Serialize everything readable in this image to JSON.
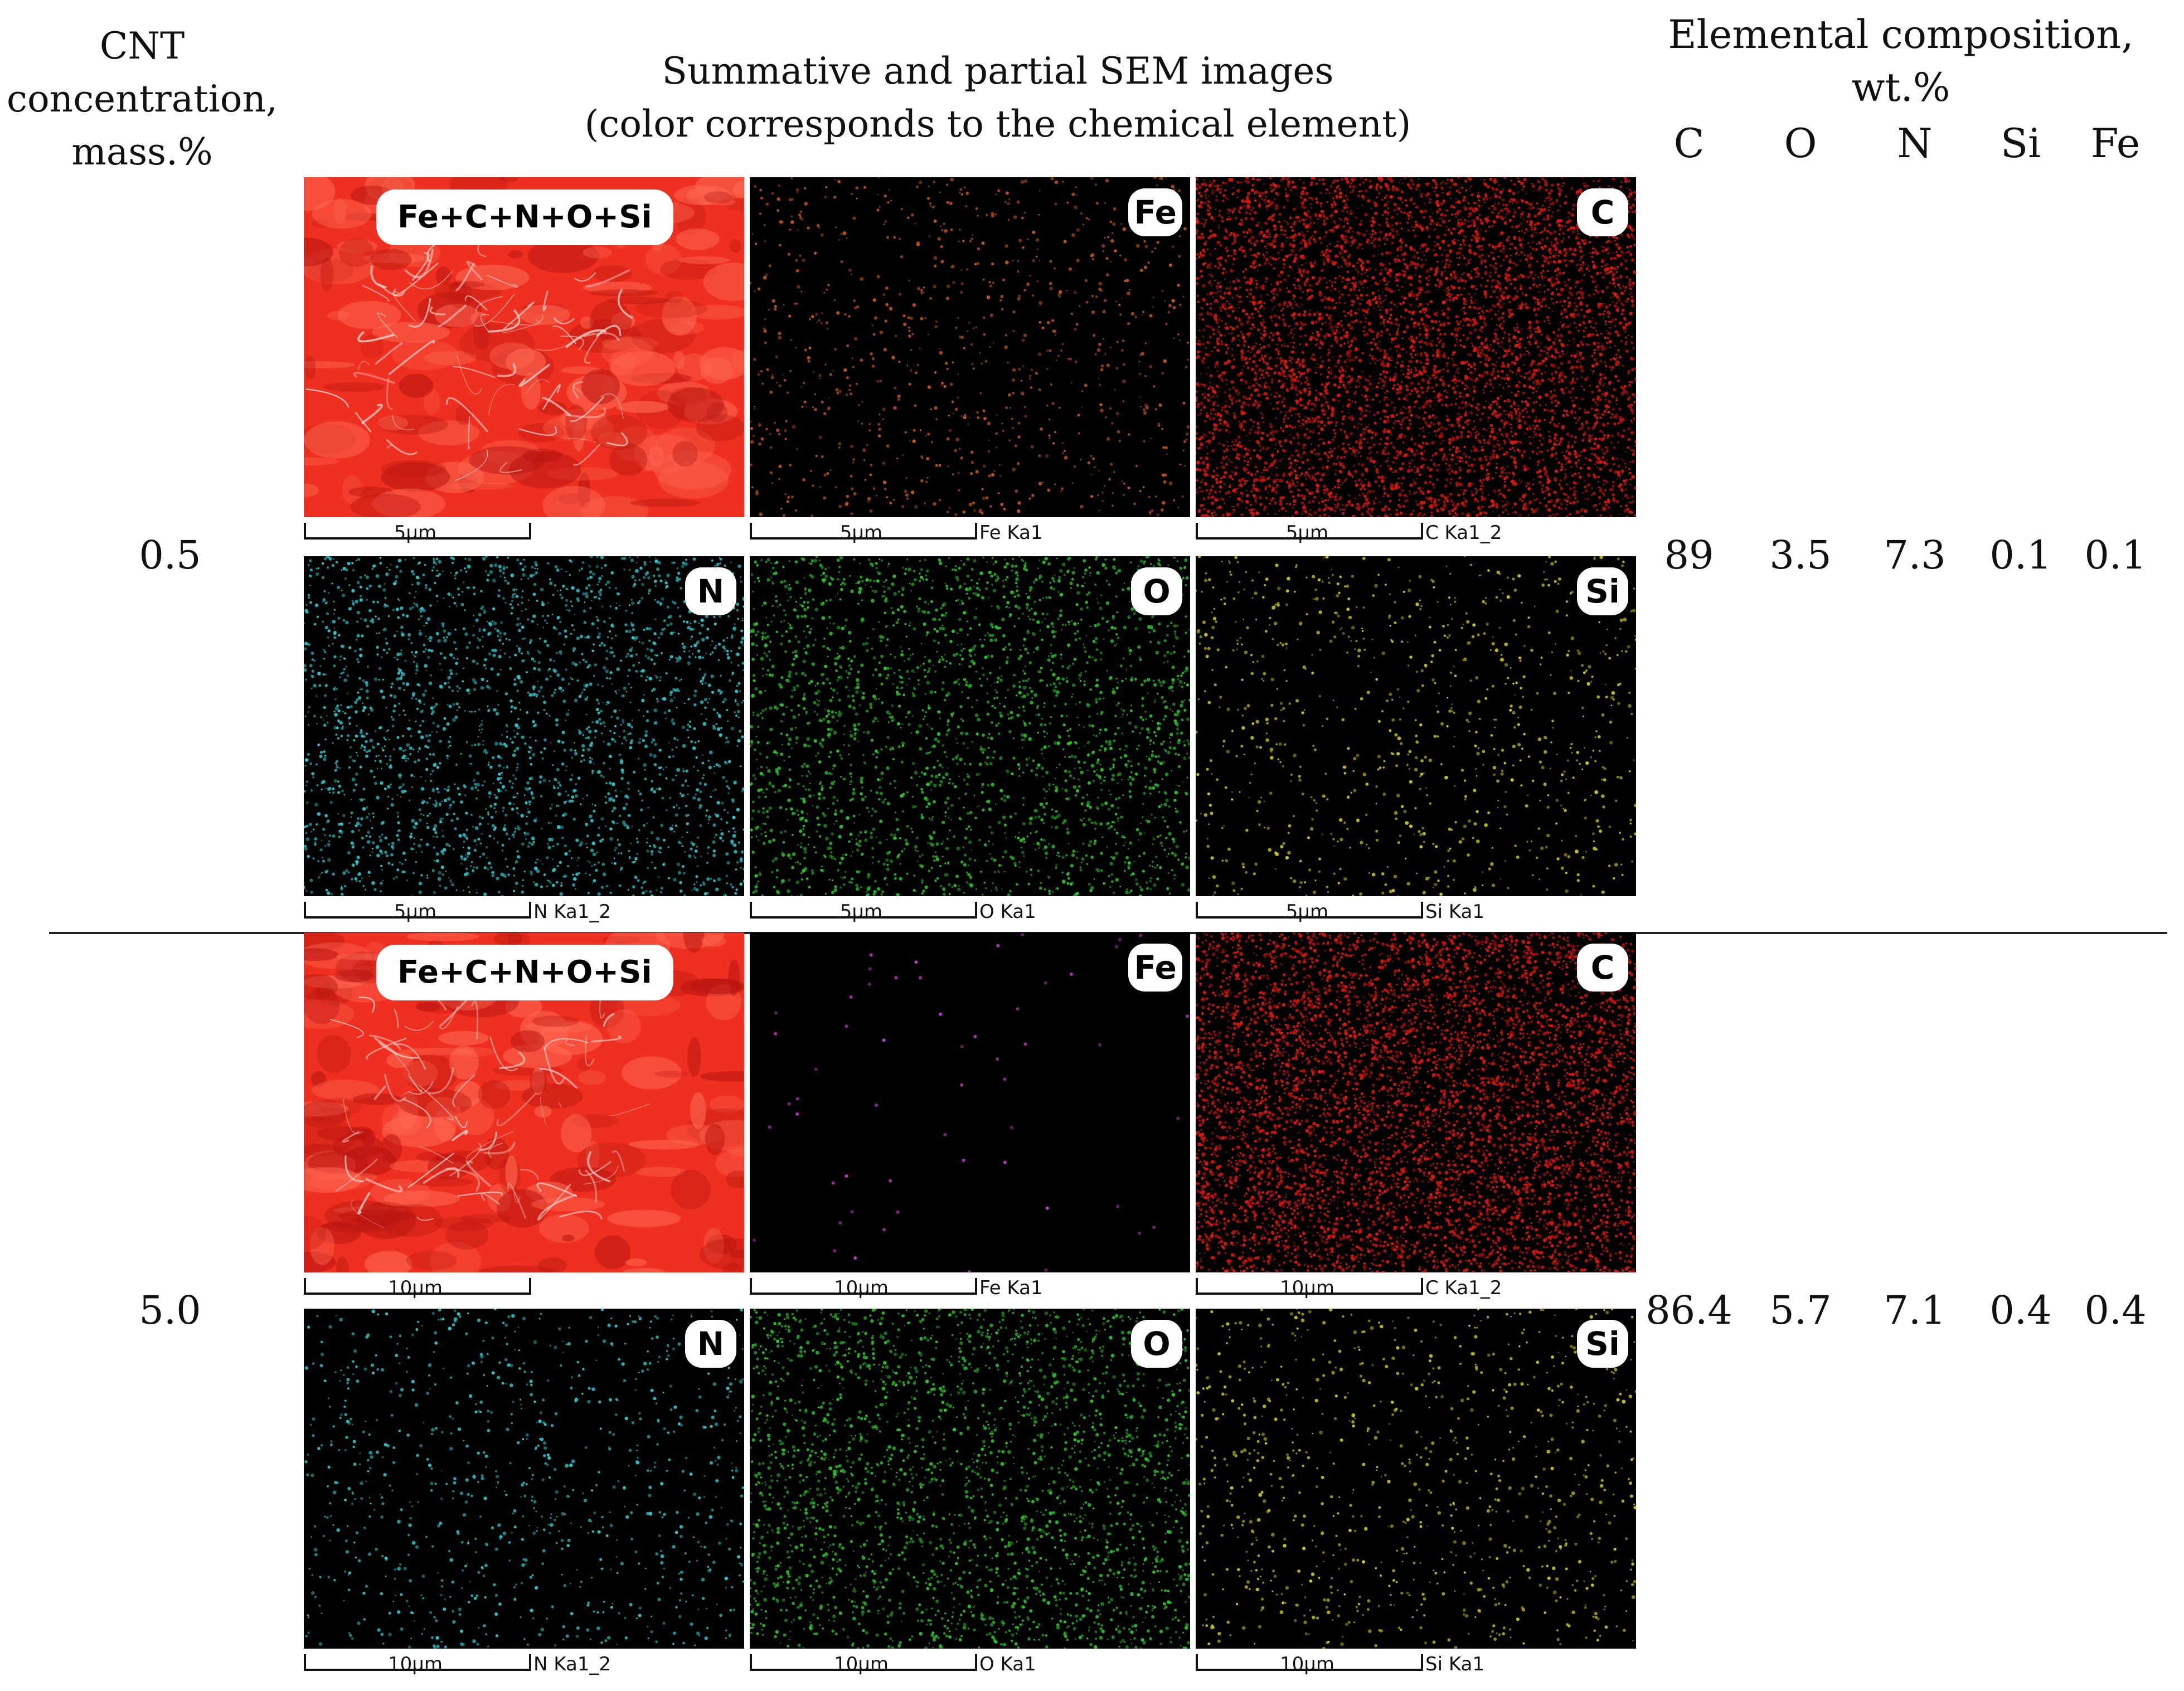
{
  "headers": {
    "cnt_lines": [
      "CNT",
      "concentration,",
      "mass.%"
    ],
    "sem_lines": [
      "Summative and partial SEM images",
      "(color corresponds to the chemical element)"
    ],
    "composition_lines": [
      "Elemental composition,",
      "wt.%"
    ],
    "elements": [
      "C",
      "O",
      "N",
      "Si",
      "Fe"
    ]
  },
  "rows": [
    {
      "concentration": "0.5",
      "values": [
        "89",
        "3.5",
        "7.3",
        "0.1",
        "0.1"
      ],
      "panels": [
        {
          "badge": "Fe+C+N+O+Si",
          "scale": "5µm",
          "label": "",
          "kind": "summative",
          "color": "#ef3020"
        },
        {
          "badge": "Fe",
          "scale": "5µm",
          "label": "Fe Ka1",
          "kind": "map",
          "color": "#c0561c",
          "density": "sparse"
        },
        {
          "badge": "C",
          "scale": "5µm",
          "label": "C Ka1_2",
          "kind": "map",
          "color": "#d81810",
          "density": "dense"
        },
        {
          "badge": "N",
          "scale": "5µm",
          "label": "N Ka1_2",
          "kind": "map",
          "color": "#2fc4c8",
          "density": "medium"
        },
        {
          "badge": "O",
          "scale": "5µm",
          "label": "O Ka1",
          "kind": "map",
          "color": "#2cbf2c",
          "density": "medium"
        },
        {
          "badge": "Si",
          "scale": "5µm",
          "label": "Si Ka1",
          "kind": "map",
          "color": "#c9c41e",
          "density": "sparse"
        }
      ]
    },
    {
      "concentration": "5.0",
      "values": [
        "86.4",
        "5.7",
        "7.1",
        "0.4",
        "0.4"
      ],
      "panels": [
        {
          "badge": "Fe+C+N+O+Si",
          "scale": "10µm",
          "label": "",
          "kind": "summative",
          "color": "#ef3020"
        },
        {
          "badge": "Fe",
          "scale": "10µm",
          "label": "Fe Ka1",
          "kind": "map",
          "color": "#c33ac8",
          "density": "very-sparse"
        },
        {
          "badge": "C",
          "scale": "10µm",
          "label": "C Ka1_2",
          "kind": "map",
          "color": "#d81810",
          "density": "dense"
        },
        {
          "badge": "N",
          "scale": "10µm",
          "label": "N Ka1_2",
          "kind": "map",
          "color": "#2fc4c8",
          "density": "sparse"
        },
        {
          "badge": "O",
          "scale": "10µm",
          "label": "O Ka1",
          "kind": "map",
          "color": "#2cbf2c",
          "density": "medium"
        },
        {
          "badge": "Si",
          "scale": "10µm",
          "label": "Si Ka1",
          "kind": "map",
          "color": "#c9c41e",
          "density": "sparse"
        }
      ]
    }
  ]
}
